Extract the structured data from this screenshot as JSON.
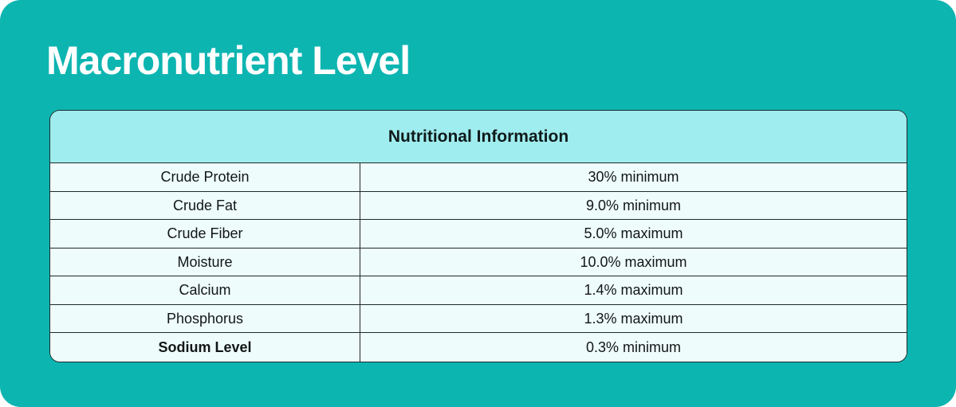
{
  "title": "Macronutrient Level",
  "table": {
    "header_label": "Nutritional Information",
    "rows": [
      {
        "label": "Crude Protein",
        "value": "30% minimum"
      },
      {
        "label": "Crude Fat",
        "value": "9.0% minimum"
      },
      {
        "label": "Crude Fiber",
        "value": "5.0% maximum"
      },
      {
        "label": "Moisture",
        "value": "10.0% maximum"
      },
      {
        "label": "Calcium",
        "value": "1.4% maximum"
      },
      {
        "label": "Phosphorus",
        "value": "1.3% maximum"
      },
      {
        "label": "Sodium Level",
        "value": "0.3% minimum"
      }
    ]
  },
  "colors": {
    "panel_teal": "#0db5b1",
    "header_cyan": "#a0edef",
    "row_mint": "#eefcfb",
    "border_dark": "#1f2a2a",
    "title_white": "#ffffff",
    "text_dark": "#121616"
  }
}
